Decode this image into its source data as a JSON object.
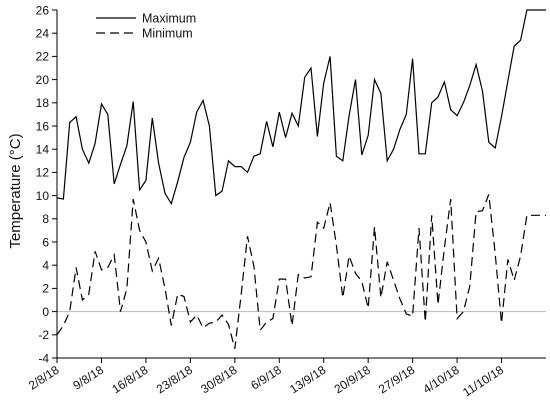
{
  "chart_data": {
    "type": "line",
    "title": "",
    "xlabel": "",
    "ylabel": "Temperature (°C)",
    "ylim": [
      -4,
      26
    ],
    "y_ticks": [
      -4,
      -2,
      0,
      2,
      4,
      6,
      8,
      10,
      12,
      14,
      16,
      18,
      20,
      22,
      24,
      26
    ],
    "x_range": [
      "2018-08-02",
      "2018-10-18"
    ],
    "x_ticks": [
      {
        "date": "2018-08-02",
        "label": "2/8/18"
      },
      {
        "date": "2018-08-09",
        "label": "9/8/18"
      },
      {
        "date": "2018-08-16",
        "label": "16/8/18"
      },
      {
        "date": "2018-08-23",
        "label": "23/8/18"
      },
      {
        "date": "2018-08-30",
        "label": "30/8/18"
      },
      {
        "date": "2018-09-06",
        "label": "6/9/18"
      },
      {
        "date": "2018-09-13",
        "label": "13/9/18"
      },
      {
        "date": "2018-09-20",
        "label": "20/9/18"
      },
      {
        "date": "2018-09-27",
        "label": "27/9/18"
      },
      {
        "date": "2018-10-04",
        "label": "4/10/18"
      },
      {
        "date": "2018-10-11",
        "label": "11/10/18"
      }
    ],
    "reference_line_y": 0,
    "grid": false,
    "legend_position": "top-left",
    "x": [
      "2018-08-02",
      "2018-08-03",
      "2018-08-04",
      "2018-08-05",
      "2018-08-06",
      "2018-08-07",
      "2018-08-08",
      "2018-08-09",
      "2018-08-10",
      "2018-08-11",
      "2018-08-12",
      "2018-08-13",
      "2018-08-14",
      "2018-08-15",
      "2018-08-16",
      "2018-08-17",
      "2018-08-18",
      "2018-08-19",
      "2018-08-20",
      "2018-08-21",
      "2018-08-22",
      "2018-08-23",
      "2018-08-24",
      "2018-08-25",
      "2018-08-26",
      "2018-08-27",
      "2018-08-28",
      "2018-08-29",
      "2018-08-30",
      "2018-08-31",
      "2018-09-01",
      "2018-09-02",
      "2018-09-03",
      "2018-09-04",
      "2018-09-05",
      "2018-09-06",
      "2018-09-07",
      "2018-09-08",
      "2018-09-09",
      "2018-09-10",
      "2018-09-11",
      "2018-09-12",
      "2018-09-13",
      "2018-09-14",
      "2018-09-15",
      "2018-09-16",
      "2018-09-17",
      "2018-09-18",
      "2018-09-19",
      "2018-09-20",
      "2018-09-21",
      "2018-09-22",
      "2018-09-23",
      "2018-09-24",
      "2018-09-25",
      "2018-09-26",
      "2018-09-27",
      "2018-09-28",
      "2018-09-29",
      "2018-09-30",
      "2018-10-01",
      "2018-10-02",
      "2018-10-03",
      "2018-10-04",
      "2018-10-05",
      "2018-10-06",
      "2018-10-07",
      "2018-10-08",
      "2018-10-09",
      "2018-10-10",
      "2018-10-11",
      "2018-10-12",
      "2018-10-13",
      "2018-10-14",
      "2018-10-15",
      "2018-10-16",
      "2018-10-17",
      "2018-10-18"
    ],
    "series": [
      {
        "name": "Maximum",
        "style": "solid",
        "color": "#000000",
        "values": [
          9.8,
          9.7,
          16.3,
          16.8,
          14.0,
          12.8,
          14.5,
          17.9,
          17.0,
          11.0,
          12.7,
          14.3,
          18.1,
          10.5,
          11.3,
          16.7,
          12.8,
          10.2,
          9.3,
          11.2,
          13.3,
          14.6,
          17.2,
          18.2,
          16.0,
          10.0,
          10.4,
          13.0,
          12.5,
          12.5,
          12.0,
          13.4,
          13.6,
          16.4,
          14.2,
          17.2,
          15.0,
          17.1,
          16.0,
          20.2,
          21.0,
          15.1,
          19.7,
          22.0,
          13.4,
          13.0,
          16.9,
          20.0,
          13.5,
          15.2,
          20.0,
          18.8,
          13.0,
          14.0,
          15.7,
          17.0,
          21.8,
          13.6,
          13.6,
          18.0,
          18.5,
          19.8,
          17.4,
          16.9,
          18.0,
          19.5,
          21.3,
          19.0,
          14.6,
          14.1,
          16.8,
          19.9,
          22.9,
          23.4,
          26.0,
          26.0,
          26.0,
          26.0
        ]
      },
      {
        "name": "Minimum",
        "style": "dashed",
        "color": "#000000",
        "values": [
          -2.0,
          -1.2,
          0.0,
          3.8,
          1.0,
          1.5,
          5.2,
          3.6,
          3.8,
          4.9,
          0.0,
          2.0,
          9.7,
          7.0,
          6.0,
          3.5,
          4.6,
          2.0,
          -1.2,
          1.5,
          1.3,
          -0.9,
          -0.3,
          -1.4,
          -1.0,
          -0.9,
          -0.3,
          -1.1,
          -3.2,
          1.5,
          6.5,
          3.9,
          -1.6,
          -0.9,
          -0.6,
          2.8,
          2.8,
          -1.2,
          3.2,
          2.9,
          3.0,
          7.7,
          7.2,
          9.4,
          5.7,
          1.2,
          4.8,
          3.3,
          2.6,
          0.3,
          7.3,
          1.2,
          4.3,
          2.7,
          1.1,
          -0.2,
          -0.4,
          7.2,
          -0.9,
          8.3,
          0.6,
          5.5,
          9.7,
          -0.6,
          0.0,
          2.2,
          8.6,
          8.7,
          10.1,
          5.0,
          -1.0,
          4.5,
          2.7,
          4.8,
          8.3,
          8.3,
          8.3,
          8.3
        ]
      }
    ]
  }
}
